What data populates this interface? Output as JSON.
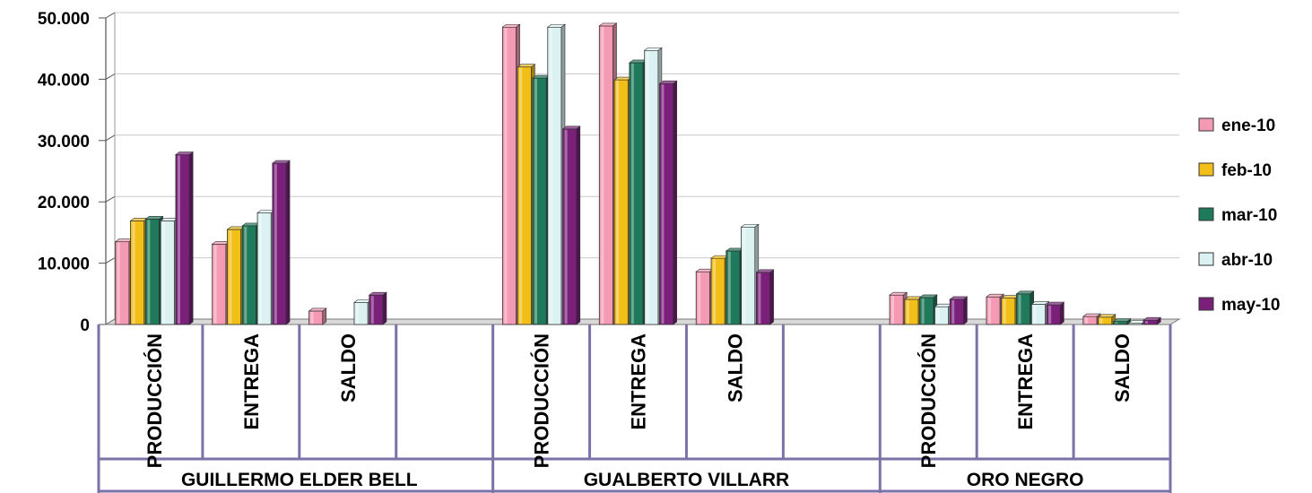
{
  "chart_data": {
    "type": "bar",
    "title": "",
    "xlabel": "",
    "ylabel": "",
    "ylim": [
      0,
      50000
    ],
    "y_ticks": [
      "0",
      "10.000",
      "20.000",
      "30.000",
      "40.000",
      "50.000"
    ],
    "grid": true,
    "legend_position": "right",
    "groups": [
      {
        "name": "GUILLERMO ELDER BELL",
        "subcategories": [
          "PRODUCCIÓN",
          "ENTREGA",
          "SALDO",
          ""
        ],
        "values": {
          "ene-10": [
            13500,
            13100,
            2200,
            null
          ],
          "feb-10": [
            16900,
            15500,
            0,
            null
          ],
          "mar-10": [
            17200,
            16100,
            0,
            null
          ],
          "abr-10": [
            16900,
            18200,
            3600,
            null
          ],
          "may-10": [
            27700,
            26300,
            4800,
            null
          ]
        }
      },
      {
        "name": "GUALBERTO VILLARR",
        "subcategories": [
          "PRODUCCIÓN",
          "ENTREGA",
          "SALDO",
          ""
        ],
        "values": {
          "ene-10": [
            48500,
            48700,
            8600,
            null
          ],
          "feb-10": [
            42000,
            39900,
            10800,
            null
          ],
          "mar-10": [
            40200,
            42700,
            12000,
            null
          ],
          "abr-10": [
            48500,
            44700,
            15900,
            null
          ],
          "may-10": [
            31900,
            39300,
            8500,
            null
          ]
        }
      },
      {
        "name": "ORO NEGRO",
        "subcategories": [
          "PRODUCCIÓN",
          "ENTREGA",
          "SALDO"
        ],
        "values": {
          "ene-10": [
            4800,
            4500,
            1300
          ],
          "feb-10": [
            4100,
            4300,
            1200
          ],
          "mar-10": [
            4400,
            5000,
            500
          ],
          "abr-10": [
            2900,
            3300,
            200
          ],
          "may-10": [
            4100,
            3200,
            700
          ]
        }
      }
    ],
    "series": [
      {
        "name": "ene-10",
        "color": "#f59ab5"
      },
      {
        "name": "feb-10",
        "color": "#f2be18"
      },
      {
        "name": "mar-10",
        "color": "#1f7a5c"
      },
      {
        "name": "abr-10",
        "color": "#dcf2f2"
      },
      {
        "name": "may-10",
        "color": "#7a1f7a"
      }
    ]
  }
}
